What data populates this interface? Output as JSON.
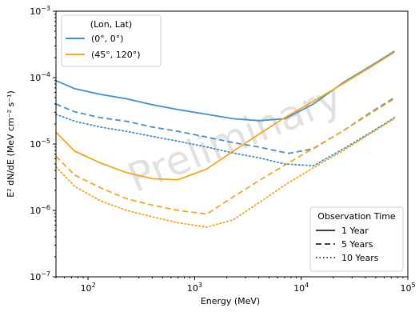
{
  "chart_data": {
    "type": "line",
    "xscale": "log",
    "yscale": "log",
    "xlim": [
      50,
      100000
    ],
    "ylim": [
      1e-07,
      0.001
    ],
    "xlabel": "Energy (MeV)",
    "ylabel": "E² dN/dE (MeV cm⁻² s⁻¹)",
    "x_ticks": [
      {
        "value": 100,
        "base": "10",
        "exp": "2"
      },
      {
        "value": 1000,
        "base": "10",
        "exp": "3"
      },
      {
        "value": 10000,
        "base": "10",
        "exp": "4"
      },
      {
        "value": 100000,
        "base": "10",
        "exp": "5"
      }
    ],
    "y_ticks": [
      {
        "value": 1e-07,
        "base": "10",
        "exp": "−7"
      },
      {
        "value": 1e-06,
        "base": "10",
        "exp": "−6"
      },
      {
        "value": 1e-05,
        "base": "10",
        "exp": "−5"
      },
      {
        "value": 0.0001,
        "base": "10",
        "exp": "−4"
      },
      {
        "value": 0.001,
        "base": "10",
        "exp": "−3"
      }
    ],
    "grid": false,
    "watermark": "Preliminary",
    "legend_location": {
      "title": "(Lon, Lat)",
      "placement": "top-left",
      "entries": [
        {
          "label": "(0°, 0°)",
          "color": "#4a8fc4"
        },
        {
          "label": "(45°, 120°)",
          "color": "#f5a623"
        }
      ]
    },
    "legend_time": {
      "title": "Observation Time",
      "placement": "bottom-right",
      "entries": [
        {
          "label": "1 Year",
          "dash": "solid"
        },
        {
          "label": "5 Years",
          "dash": "dashed"
        },
        {
          "label": "10 Years",
          "dash": "dotted"
        }
      ]
    },
    "series": [
      {
        "location": "(0°, 0°)",
        "duration": "1 Year",
        "color": "#4a8fc4",
        "dash": "solid",
        "x": [
          50,
          75,
          130,
          230,
          400,
          700,
          1300,
          2300,
          4000,
          7000,
          13000,
          25000,
          45000,
          75000
        ],
        "y": [
          9e-05,
          6.8e-05,
          5.6e-05,
          4.8e-05,
          3.9e-05,
          3.3e-05,
          2.8e-05,
          2.4e-05,
          2.25e-05,
          2.4e-05,
          4e-05,
          8.5e-05,
          0.00015,
          0.00025
        ]
      },
      {
        "location": "(0°, 0°)",
        "duration": "5 Years",
        "color": "#4a8fc4",
        "dash": "dashed",
        "x": [
          50,
          75,
          130,
          230,
          400,
          700,
          1300,
          2300,
          4000,
          7600,
          13000,
          25000,
          45000,
          75000
        ],
        "y": [
          4e-05,
          3.05e-05,
          2.5e-05,
          2.2e-05,
          1.8e-05,
          1.55e-05,
          1.27e-05,
          1.05e-05,
          9e-06,
          7.2e-06,
          8.5e-06,
          1.6e-05,
          3e-05,
          5e-05
        ]
      },
      {
        "location": "(0°, 0°)",
        "duration": "10 Years",
        "color": "#4a8fc4",
        "dash": "dotted",
        "x": [
          50,
          75,
          130,
          230,
          400,
          700,
          1300,
          2300,
          4000,
          7000,
          13000,
          25000,
          45000,
          75000
        ],
        "y": [
          2.8e-05,
          2.2e-05,
          1.8e-05,
          1.55e-05,
          1.3e-05,
          1.1e-05,
          9e-06,
          7.3e-06,
          6.2e-06,
          5e-06,
          4.7e-06,
          8.5e-06,
          1.5e-05,
          2.5e-05
        ]
      },
      {
        "location": "(45°, 120°)",
        "duration": "1 Year",
        "color": "#f5a623",
        "dash": "solid",
        "x": [
          50,
          75,
          130,
          230,
          400,
          700,
          1300,
          2300,
          4000,
          7000,
          13000,
          25000,
          45000,
          75000
        ],
        "y": [
          1.5e-05,
          7.8e-06,
          5.2e-06,
          3.7e-06,
          3e-06,
          2.9e-06,
          4.2e-06,
          7.8e-06,
          1.4e-05,
          2.5e-05,
          4.4e-05,
          8.2e-05,
          0.000145,
          0.00024
        ]
      },
      {
        "location": "(45°, 120°)",
        "duration": "5 Years",
        "color": "#f5a623",
        "dash": "dashed",
        "x": [
          50,
          75,
          130,
          230,
          400,
          700,
          1300,
          2300,
          4000,
          7000,
          13000,
          25000,
          45000,
          75000
        ],
        "y": [
          6.5e-06,
          3.4e-06,
          2.2e-06,
          1.5e-06,
          1.2e-06,
          1e-06,
          8.8e-07,
          1.6e-06,
          2.8e-06,
          4.8e-06,
          8.6e-06,
          1.6e-05,
          2.9e-05,
          4.8e-05
        ]
      },
      {
        "location": "(45°, 120°)",
        "duration": "10 Years",
        "color": "#f5a623",
        "dash": "dotted",
        "x": [
          50,
          75,
          130,
          230,
          400,
          700,
          1300,
          2300,
          4000,
          7000,
          13000,
          25000,
          45000,
          75000
        ],
        "y": [
          4.5e-06,
          2.3e-06,
          1.4e-06,
          1e-06,
          8e-07,
          6.5e-07,
          5.6e-07,
          7.2e-07,
          1.3e-06,
          2.4e-06,
          4.4e-06,
          8e-06,
          1.45e-05,
          2.4e-05
        ]
      }
    ]
  }
}
